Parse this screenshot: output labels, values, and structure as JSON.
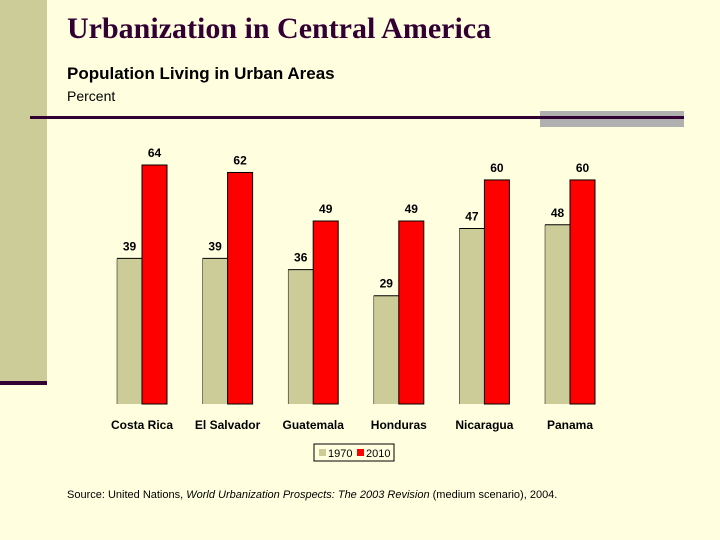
{
  "title": "Urbanization in Central America",
  "subtitle": "Population Living in Urban Areas",
  "unit_label": "Percent",
  "source": {
    "prefix": "Source: United Nations, ",
    "italic": "World Urbanization Prospects: The 2003 Revision",
    "suffix": " (medium scenario), 2004."
  },
  "chart_data": {
    "type": "bar",
    "categories": [
      "Costa Rica",
      "El Salvador",
      "Guatemala",
      "Honduras",
      "Nicaragua",
      "Panama"
    ],
    "series": [
      {
        "name": "1970",
        "values": [
          39,
          39,
          36,
          29,
          47,
          48
        ],
        "color": "#cccc99"
      },
      {
        "name": "2010",
        "values": [
          64,
          62,
          49,
          49,
          60,
          60
        ],
        "color": "#ff0000"
      }
    ],
    "ylim": [
      0,
      64
    ],
    "grid": false,
    "legend": "bottom"
  }
}
